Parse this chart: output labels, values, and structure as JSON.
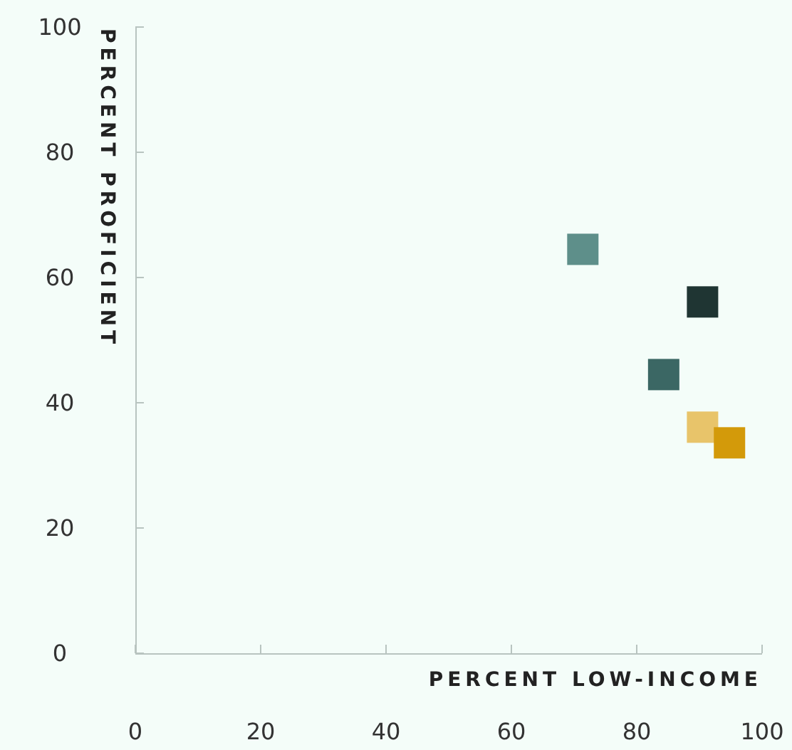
{
  "chart_data": {
    "type": "scatter",
    "xlabel": "PERCENT LOW-INCOME",
    "ylabel": "PERCENT PROFICIENT",
    "x": [
      71.4,
      90.5,
      84.3,
      90.5,
      94.8
    ],
    "values": [
      64.5,
      56.1,
      44.5,
      36.1,
      33.6
    ],
    "colors": [
      "#5e8f8a",
      "#1f3533",
      "#3b6764",
      "#e8c46a",
      "#d39a0a"
    ],
    "marker": "square",
    "xlim": [
      0,
      100
    ],
    "ylim": [
      0,
      100
    ],
    "xticks": [
      0,
      20,
      40,
      60,
      80,
      100
    ],
    "yticks": [
      0,
      20,
      40,
      60,
      80,
      100
    ],
    "grid": false
  }
}
